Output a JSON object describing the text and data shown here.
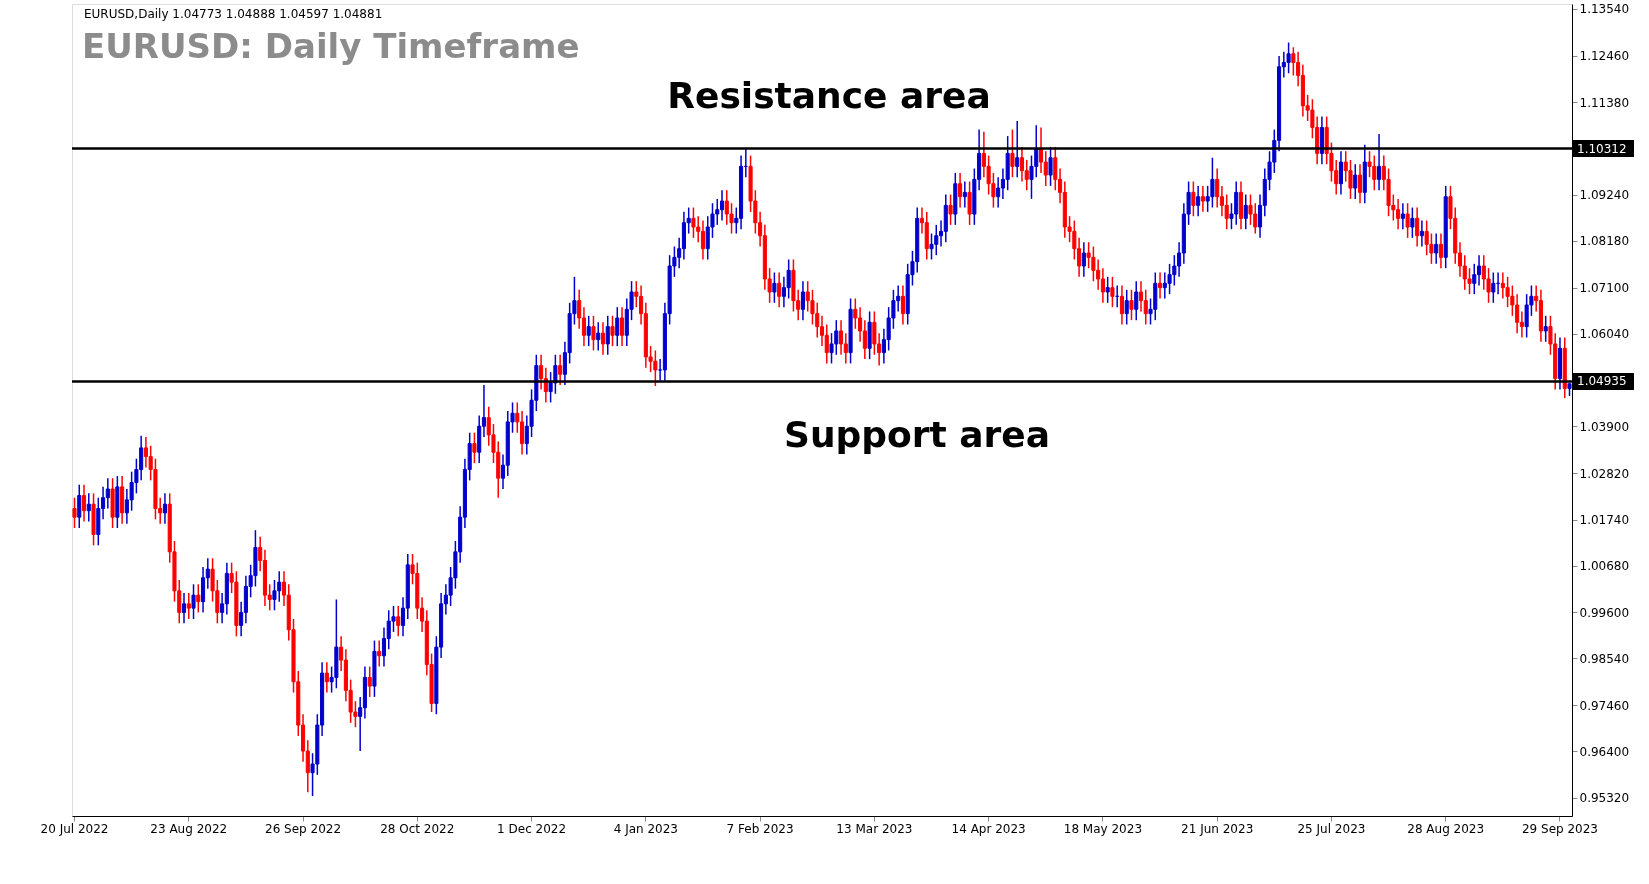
{
  "chart_data": {
    "type": "candlestick",
    "title": "EURUSD: Daily Timeframe",
    "annotations": [
      "EURUSD,Daily  1.04773 1.04888 1.04597 1.04881",
      "Resistance area",
      "Support area"
    ],
    "categories": [
      "20 Jul 2022",
      null,
      null,
      null,
      null,
      null,
      null,
      null,
      null,
      null,
      null,
      null,
      null,
      null,
      null,
      null,
      null,
      null,
      null,
      null,
      null,
      null,
      null,
      null,
      "23 Aug 2022",
      null,
      null,
      null,
      null,
      null,
      null,
      null,
      null,
      null,
      null,
      null,
      null,
      null,
      null,
      null,
      null,
      null,
      null,
      null,
      null,
      null,
      null,
      null,
      "26 Sep 2022",
      null,
      null,
      null,
      null,
      null,
      null,
      null,
      null,
      null,
      null,
      null,
      null,
      null,
      null,
      null,
      null,
      null,
      null,
      null,
      null,
      null,
      null,
      null,
      "28 Oct 2022",
      null,
      null,
      null,
      null,
      null,
      null,
      null,
      null,
      null,
      null,
      null,
      null,
      null,
      null,
      null,
      null,
      null,
      null,
      null,
      null,
      null,
      null,
      null,
      "1 Dec 2022",
      null,
      null,
      null,
      null,
      null,
      null,
      null,
      null,
      null,
      null,
      null,
      null,
      null,
      null,
      null,
      null,
      null,
      null,
      null,
      null,
      null,
      null,
      null,
      "4 Jan 2023",
      null,
      null,
      null,
      null,
      null,
      null,
      null,
      null,
      null,
      null,
      null,
      null,
      null,
      null,
      null,
      null,
      null,
      null,
      null,
      null,
      null,
      null,
      null,
      "7 Feb 2023",
      null,
      null,
      null,
      null,
      null,
      null,
      null,
      null,
      null,
      null,
      null,
      null,
      null,
      null,
      null,
      null,
      null,
      null,
      null,
      null,
      null,
      null,
      null,
      "13 Mar 2023",
      null,
      null,
      null,
      null,
      null,
      null,
      null,
      null,
      null,
      null,
      null,
      null,
      null,
      null,
      null,
      null,
      null,
      null,
      null,
      null,
      null,
      null,
      null,
      "14 Apr 2023",
      null,
      null,
      null,
      null,
      null,
      null,
      null,
      null,
      null,
      null,
      null,
      null,
      null,
      null,
      null,
      null,
      null,
      null,
      null,
      null,
      null,
      null,
      null,
      "18 May 2023",
      null,
      null,
      null,
      null,
      null,
      null,
      null,
      null,
      null,
      null,
      null,
      null,
      null,
      null,
      null,
      null,
      null,
      null,
      null,
      null,
      null,
      null,
      null,
      "21 Jun 2023",
      null,
      null,
      null,
      null,
      null,
      null,
      null,
      null,
      null,
      null,
      null,
      null,
      null,
      null,
      null,
      null,
      null,
      null,
      null,
      null,
      null,
      null,
      null,
      "25 Jul 2023",
      null,
      null,
      null,
      null,
      null,
      null,
      null,
      null,
      null,
      null,
      null,
      null,
      null,
      null,
      null,
      null,
      null,
      null,
      null,
      null,
      null,
      null,
      null,
      "28 Aug 2023",
      null,
      null,
      null,
      null,
      null,
      null,
      null,
      null,
      null,
      null,
      null,
      null,
      null,
      null,
      null,
      null,
      null,
      null,
      null,
      null,
      null,
      null,
      null,
      "29 Sep 2023",
      null,
      null
    ],
    "ylim": [
      0.949,
      1.1365
    ],
    "yticks": [
      {
        "value": 0.9532,
        "label": "0.95320"
      },
      {
        "value": 0.964,
        "label": "0.96400"
      },
      {
        "value": 0.9746,
        "label": "0.97460"
      },
      {
        "value": 0.9854,
        "label": "0.98540"
      },
      {
        "value": 0.996,
        "label": "0.99600"
      },
      {
        "value": 1.0068,
        "label": "1.00680"
      },
      {
        "value": 1.0174,
        "label": "1.01740"
      },
      {
        "value": 1.0282,
        "label": "1.02820"
      },
      {
        "value": 1.039,
        "label": "1.03900"
      },
      {
        "value": 1.0604,
        "label": "1.06040"
      },
      {
        "value": 1.071,
        "label": "1.07100"
      },
      {
        "value": 1.0818,
        "label": "1.08180"
      },
      {
        "value": 1.0924,
        "label": "1.09240"
      },
      {
        "value": 1.1138,
        "label": "1.11380"
      },
      {
        "value": 1.1246,
        "label": "1.12460"
      },
      {
        "value": 1.1354,
        "label": "1.13540"
      }
    ],
    "ref_lines": [
      {
        "axis": "y",
        "value": 1.10312,
        "label": "1.10312",
        "color": "#000000"
      },
      {
        "axis": "y",
        "value": 1.04935,
        "label": "1.04935",
        "color": "#000000"
      }
    ],
    "grid": false,
    "ohlc": [
      [
        1.02,
        1.0225,
        1.0155,
        1.018
      ],
      [
        1.018,
        1.0255,
        1.0155,
        1.023
      ],
      [
        1.023,
        1.0255,
        1.017,
        1.0195
      ],
      [
        1.0195,
        1.0235,
        1.017,
        1.021
      ],
      [
        1.021,
        1.0235,
        1.0115,
        1.014
      ],
      [
        1.014,
        1.0225,
        1.0115,
        1.02
      ],
      [
        1.02,
        1.025,
        1.0175,
        1.0225
      ],
      [
        1.0225,
        1.027,
        1.02,
        1.0245
      ],
      [
        1.0245,
        1.027,
        1.0155,
        1.018
      ],
      [
        1.018,
        1.0275,
        1.0155,
        1.025
      ],
      [
        1.025,
        1.0275,
        1.0165,
        1.019
      ],
      [
        1.019,
        1.0245,
        1.0165,
        1.022
      ],
      [
        1.022,
        1.0285,
        1.0195,
        1.026
      ],
      [
        1.026,
        1.0315,
        1.0235,
        1.029
      ],
      [
        1.029,
        1.0368,
        1.0265,
        1.034
      ],
      [
        1.034,
        1.0365,
        1.0295,
        1.032
      ],
      [
        1.032,
        1.0345,
        1.0265,
        1.029
      ],
      [
        1.029,
        1.0315,
        1.0175,
        1.02
      ],
      [
        1.02,
        1.0225,
        1.0165,
        1.019
      ],
      [
        1.019,
        1.0235,
        1.0165,
        1.021
      ],
      [
        1.021,
        1.0235,
        1.0075,
        1.01
      ],
      [
        1.01,
        1.0125,
        0.9985,
        1.001
      ],
      [
        1.001,
        1.0035,
        0.9935,
        0.996
      ],
      [
        0.996,
        1.0005,
        0.9935,
        0.998
      ],
      [
        0.998,
        1.0005,
        0.9945,
        0.997
      ],
      [
        0.997,
        1.0025,
        0.9945,
        1.0
      ],
      [
        1.0,
        1.0025,
        0.996,
        0.9985
      ],
      [
        0.9985,
        1.0065,
        0.996,
        1.004
      ],
      [
        1.004,
        1.0085,
        1.0015,
        1.006
      ],
      [
        1.006,
        1.0085,
        0.9985,
        1.001
      ],
      [
        1.001,
        1.0035,
        0.9935,
        0.996
      ],
      [
        0.996,
        1.0005,
        0.9935,
        0.998
      ],
      [
        0.998,
        1.0075,
        0.9955,
        1.005
      ],
      [
        1.005,
        1.0075,
        1.0005,
        1.003
      ],
      [
        1.003,
        1.0055,
        0.9905,
        0.993
      ],
      [
        0.993,
        0.9985,
        0.9905,
        0.996
      ],
      [
        0.996,
        1.0045,
        0.9935,
        1.002
      ],
      [
        1.002,
        1.007,
        0.9995,
        1.0045
      ],
      [
        1.0045,
        1.015,
        1.002,
        1.011
      ],
      [
        1.011,
        1.0135,
        1.0055,
        1.008
      ],
      [
        1.008,
        1.0105,
        0.9975,
        1.0
      ],
      [
        1.0,
        1.0025,
        0.9965,
        0.999
      ],
      [
        0.999,
        1.0035,
        0.9965,
        1.001
      ],
      [
        1.001,
        1.0055,
        0.9985,
        1.003
      ],
      [
        1.003,
        1.0055,
        0.9975,
        1.0
      ],
      [
        1.0,
        1.0025,
        0.9895,
        0.992
      ],
      [
        0.992,
        0.9945,
        0.9775,
        0.98
      ],
      [
        0.98,
        0.9825,
        0.9675,
        0.97
      ],
      [
        0.97,
        0.9725,
        0.9615,
        0.964
      ],
      [
        0.964,
        0.9665,
        0.9545,
        0.959
      ],
      [
        0.959,
        0.9635,
        0.9536,
        0.961
      ],
      [
        0.961,
        0.9725,
        0.9585,
        0.97
      ],
      [
        0.97,
        0.9845,
        0.9675,
        0.982
      ],
      [
        0.982,
        0.9845,
        0.9775,
        0.98
      ],
      [
        0.98,
        0.9835,
        0.9775,
        0.981
      ],
      [
        0.981,
        0.999,
        0.9785,
        0.988
      ],
      [
        0.988,
        0.9905,
        0.9825,
        0.985
      ],
      [
        0.985,
        0.9875,
        0.9755,
        0.978
      ],
      [
        0.978,
        0.9805,
        0.9705,
        0.973
      ],
      [
        0.973,
        0.9755,
        0.9695,
        0.972
      ],
      [
        0.972,
        0.9765,
        0.964,
        0.974
      ],
      [
        0.974,
        0.9835,
        0.9715,
        0.981
      ],
      [
        0.981,
        0.9835,
        0.9765,
        0.979
      ],
      [
        0.979,
        0.9895,
        0.9765,
        0.987
      ],
      [
        0.987,
        0.9895,
        0.9835,
        0.986
      ],
      [
        0.986,
        0.9925,
        0.9835,
        0.99
      ],
      [
        0.99,
        0.9965,
        0.9875,
        0.994
      ],
      [
        0.994,
        0.9975,
        0.9915,
        0.995
      ],
      [
        0.995,
        0.9975,
        0.9905,
        0.993
      ],
      [
        0.993,
        0.9995,
        0.9905,
        0.997
      ],
      [
        0.997,
        1.0095,
        0.9945,
        1.007
      ],
      [
        1.007,
        1.0095,
        1.0025,
        1.005
      ],
      [
        1.005,
        1.0075,
        0.9945,
        0.997
      ],
      [
        0.997,
        0.9995,
        0.9915,
        0.994
      ],
      [
        0.994,
        0.9965,
        0.9815,
        0.984
      ],
      [
        0.984,
        0.9865,
        0.973,
        0.975
      ],
      [
        0.975,
        0.9905,
        0.9725,
        0.988
      ],
      [
        0.988,
        1.0005,
        0.9855,
        0.998
      ],
      [
        0.998,
        1.0025,
        0.9955,
        1.0
      ],
      [
        1.0,
        1.0065,
        0.9975,
        1.004
      ],
      [
        1.004,
        1.0125,
        1.0015,
        1.01
      ],
      [
        1.01,
        1.0205,
        1.0075,
        1.018
      ],
      [
        1.018,
        1.0315,
        1.0155,
        1.029
      ],
      [
        1.029,
        1.0375,
        1.0265,
        1.035
      ],
      [
        1.035,
        1.0375,
        1.0305,
        1.033
      ],
      [
        1.033,
        1.0415,
        1.0305,
        1.039
      ],
      [
        1.039,
        1.0485,
        1.0365,
        1.041
      ],
      [
        1.041,
        1.0435,
        1.0345,
        1.037
      ],
      [
        1.037,
        1.0395,
        1.0305,
        1.033
      ],
      [
        1.033,
        1.0355,
        1.0225,
        1.027
      ],
      [
        1.027,
        1.0325,
        1.0245,
        1.03
      ],
      [
        1.03,
        1.0425,
        1.0275,
        1.04
      ],
      [
        1.04,
        1.0445,
        1.0375,
        1.042
      ],
      [
        1.042,
        1.0445,
        1.0375,
        1.04
      ],
      [
        1.04,
        1.0425,
        1.0325,
        1.035
      ],
      [
        1.035,
        1.0415,
        1.0325,
        1.039
      ],
      [
        1.039,
        1.0475,
        1.0365,
        1.045
      ],
      [
        1.045,
        1.0555,
        1.0425,
        1.053
      ],
      [
        1.053,
        1.0555,
        1.0475,
        1.05
      ],
      [
        1.05,
        1.0525,
        1.0445,
        1.047
      ],
      [
        1.047,
        1.0515,
        1.0445,
        1.049
      ],
      [
        1.049,
        1.0555,
        1.0465,
        1.053
      ],
      [
        1.053,
        1.0555,
        1.0485,
        1.051
      ],
      [
        1.051,
        1.0585,
        1.0485,
        1.056
      ],
      [
        1.056,
        1.0675,
        1.0535,
        1.065
      ],
      [
        1.065,
        1.0735,
        1.0625,
        1.068
      ],
      [
        1.068,
        1.0705,
        1.0615,
        1.064
      ],
      [
        1.064,
        1.0665,
        1.0575,
        1.06
      ],
      [
        1.06,
        1.0645,
        1.0575,
        1.062
      ],
      [
        1.062,
        1.0645,
        1.0565,
        1.059
      ],
      [
        1.059,
        1.063,
        1.0565,
        1.0605
      ],
      [
        1.0605,
        1.063,
        1.0555,
        1.058
      ],
      [
        1.058,
        1.0645,
        1.0555,
        1.062
      ],
      [
        1.062,
        1.0645,
        1.0575,
        1.06
      ],
      [
        1.06,
        1.0665,
        1.0575,
        1.064
      ],
      [
        1.064,
        1.0665,
        1.0575,
        1.06
      ],
      [
        1.06,
        1.0685,
        1.0575,
        1.066
      ],
      [
        1.066,
        1.0725,
        1.0635,
        1.07
      ],
      [
        1.07,
        1.0725,
        1.0665,
        1.069
      ],
      [
        1.069,
        1.0715,
        1.0625,
        1.065
      ],
      [
        1.065,
        1.0675,
        1.0525,
        1.055
      ],
      [
        1.055,
        1.0575,
        1.0515,
        1.054
      ],
      [
        1.054,
        1.0565,
        1.0483,
        1.052
      ],
      [
        1.052,
        1.0545,
        1.0495,
        1.052
      ],
      [
        1.052,
        1.0675,
        1.0495,
        1.065
      ],
      [
        1.065,
        1.0785,
        1.0625,
        1.076
      ],
      [
        1.076,
        1.0805,
        1.0735,
        1.078
      ],
      [
        1.078,
        1.0825,
        1.0755,
        1.08
      ],
      [
        1.08,
        1.0885,
        1.0775,
        1.086
      ],
      [
        1.086,
        1.0895,
        1.0835,
        1.087
      ],
      [
        1.087,
        1.0895,
        1.0825,
        1.085
      ],
      [
        1.085,
        1.0875,
        1.0815,
        1.084
      ],
      [
        1.084,
        1.0865,
        1.0775,
        1.08
      ],
      [
        1.08,
        1.0875,
        1.0775,
        1.085
      ],
      [
        1.085,
        1.0905,
        1.0825,
        1.088
      ],
      [
        1.088,
        1.0915,
        1.0855,
        1.089
      ],
      [
        1.089,
        1.0935,
        1.0865,
        1.091
      ],
      [
        1.091,
        1.0935,
        1.0855,
        1.088
      ],
      [
        1.088,
        1.0905,
        1.0835,
        1.086
      ],
      [
        1.086,
        1.0895,
        1.0835,
        1.087
      ],
      [
        1.087,
        1.1015,
        1.0845,
        1.099
      ],
      [
        1.099,
        1.1032,
        1.0965,
        1.099
      ],
      [
        1.099,
        1.1015,
        1.0885,
        1.091
      ],
      [
        1.091,
        1.0935,
        1.0835,
        1.086
      ],
      [
        1.086,
        1.0885,
        1.0805,
        1.083
      ],
      [
        1.083,
        1.0855,
        1.0705,
        1.073
      ],
      [
        1.073,
        1.0755,
        1.0675,
        1.07
      ],
      [
        1.07,
        1.0745,
        1.0675,
        1.072
      ],
      [
        1.072,
        1.0745,
        1.0665,
        1.069
      ],
      [
        1.069,
        1.0735,
        1.0665,
        1.071
      ],
      [
        1.071,
        1.0775,
        1.0685,
        1.075
      ],
      [
        1.075,
        1.0775,
        1.0655,
        1.068
      ],
      [
        1.068,
        1.0705,
        1.0635,
        1.066
      ],
      [
        1.066,
        1.0725,
        1.0635,
        1.07
      ],
      [
        1.07,
        1.0725,
        1.0655,
        1.068
      ],
      [
        1.068,
        1.0705,
        1.0625,
        1.065
      ],
      [
        1.065,
        1.0675,
        1.0595,
        1.062
      ],
      [
        1.062,
        1.0645,
        1.0575,
        1.06
      ],
      [
        1.06,
        1.0625,
        1.0535,
        1.056
      ],
      [
        1.056,
        1.0605,
        1.0535,
        1.058
      ],
      [
        1.058,
        1.0635,
        1.0555,
        1.061
      ],
      [
        1.061,
        1.0635,
        1.0555,
        1.058
      ],
      [
        1.058,
        1.0605,
        1.0535,
        1.056
      ],
      [
        1.056,
        1.0685,
        1.0535,
        1.066
      ],
      [
        1.066,
        1.0685,
        1.0615,
        1.064
      ],
      [
        1.064,
        1.0665,
        1.0585,
        1.061
      ],
      [
        1.061,
        1.0635,
        1.0545,
        1.057
      ],
      [
        1.057,
        1.0655,
        1.0545,
        1.063
      ],
      [
        1.063,
        1.0655,
        1.0555,
        1.058
      ],
      [
        1.058,
        1.0605,
        1.053,
        1.056
      ],
      [
        1.056,
        1.0615,
        1.0535,
        1.059
      ],
      [
        1.059,
        1.0665,
        1.0565,
        1.064
      ],
      [
        1.064,
        1.0705,
        1.0615,
        1.068
      ],
      [
        1.068,
        1.0715,
        1.0655,
        1.069
      ],
      [
        1.069,
        1.0715,
        1.0625,
        1.065
      ],
      [
        1.065,
        1.0765,
        1.0625,
        1.074
      ],
      [
        1.074,
        1.0795,
        1.0715,
        1.077
      ],
      [
        1.077,
        1.0895,
        1.0745,
        1.087
      ],
      [
        1.087,
        1.0895,
        1.0835,
        1.086
      ],
      [
        1.086,
        1.0885,
        1.0775,
        1.08
      ],
      [
        1.08,
        1.0835,
        1.0775,
        1.081
      ],
      [
        1.081,
        1.0855,
        1.0785,
        1.083
      ],
      [
        1.083,
        1.0865,
        1.0805,
        1.084
      ],
      [
        1.084,
        1.0925,
        1.0815,
        1.09
      ],
      [
        1.09,
        1.0925,
        1.0855,
        1.088
      ],
      [
        1.088,
        1.0975,
        1.0855,
        1.095
      ],
      [
        1.095,
        1.0975,
        1.0895,
        1.092
      ],
      [
        1.092,
        1.0955,
        1.0895,
        1.093
      ],
      [
        1.093,
        1.0955,
        1.0855,
        1.088
      ],
      [
        1.088,
        1.0985,
        1.0855,
        1.096
      ],
      [
        1.096,
        1.1075,
        1.0935,
        1.102
      ],
      [
        1.102,
        1.107,
        1.0965,
        1.099
      ],
      [
        1.099,
        1.1015,
        1.0925,
        1.095
      ],
      [
        1.095,
        1.0975,
        1.0895,
        1.092
      ],
      [
        1.092,
        1.0965,
        1.0895,
        1.094
      ],
      [
        1.094,
        1.0985,
        1.0915,
        1.096
      ],
      [
        1.096,
        1.106,
        1.0935,
        1.102
      ],
      [
        1.102,
        1.1075,
        1.0965,
        1.099
      ],
      [
        1.099,
        1.1095,
        1.0965,
        1.101
      ],
      [
        1.101,
        1.1035,
        1.0955,
        1.098
      ],
      [
        1.098,
        1.1005,
        1.0935,
        1.096
      ],
      [
        1.096,
        1.1015,
        1.0915,
        1.099
      ],
      [
        1.099,
        1.1085,
        1.0965,
        1.103
      ],
      [
        1.103,
        1.108,
        1.0975,
        1.1
      ],
      [
        1.1,
        1.1025,
        1.0945,
        1.097
      ],
      [
        1.097,
        1.1035,
        1.0945,
        1.101
      ],
      [
        1.101,
        1.1035,
        1.0935,
        1.096
      ],
      [
        1.096,
        1.0985,
        1.0905,
        1.093
      ],
      [
        1.093,
        1.0955,
        1.0825,
        1.085
      ],
      [
        1.085,
        1.0875,
        1.0815,
        1.084
      ],
      [
        1.084,
        1.0865,
        1.0775,
        1.08
      ],
      [
        1.08,
        1.0825,
        1.0735,
        1.076
      ],
      [
        1.076,
        1.0815,
        1.0735,
        1.079
      ],
      [
        1.079,
        1.0815,
        1.0755,
        1.078
      ],
      [
        1.078,
        1.0805,
        1.0725,
        1.075
      ],
      [
        1.075,
        1.0775,
        1.0705,
        1.073
      ],
      [
        1.073,
        1.0755,
        1.0675,
        1.07
      ],
      [
        1.07,
        1.0735,
        1.0675,
        1.071
      ],
      [
        1.071,
        1.0735,
        1.0665,
        1.069
      ],
      [
        1.069,
        1.0715,
        1.0665,
        1.069
      ],
      [
        1.069,
        1.0715,
        1.0625,
        1.065
      ],
      [
        1.065,
        1.0705,
        1.0625,
        1.068
      ],
      [
        1.068,
        1.0705,
        1.0635,
        1.066
      ],
      [
        1.066,
        1.0725,
        1.0635,
        1.07
      ],
      [
        1.07,
        1.0725,
        1.0655,
        1.068
      ],
      [
        1.068,
        1.0705,
        1.0625,
        1.065
      ],
      [
        1.065,
        1.0685,
        1.0625,
        1.066
      ],
      [
        1.066,
        1.0745,
        1.0635,
        1.072
      ],
      [
        1.072,
        1.0745,
        1.0685,
        1.071
      ],
      [
        1.071,
        1.0745,
        1.0685,
        1.072
      ],
      [
        1.072,
        1.0765,
        1.0695,
        1.074
      ],
      [
        1.074,
        1.0785,
        1.0715,
        1.076
      ],
      [
        1.076,
        1.0815,
        1.0735,
        1.079
      ],
      [
        1.079,
        1.0905,
        1.0765,
        1.088
      ],
      [
        1.088,
        1.0955,
        1.0855,
        1.093
      ],
      [
        1.093,
        1.0955,
        1.0875,
        1.09
      ],
      [
        1.09,
        1.0945,
        1.0875,
        1.092
      ],
      [
        1.092,
        1.0945,
        1.0885,
        1.091
      ],
      [
        1.091,
        1.0945,
        1.0885,
        1.092
      ],
      [
        1.092,
        1.101,
        1.0895,
        1.096
      ],
      [
        1.096,
        1.0985,
        1.0895,
        1.092
      ],
      [
        1.092,
        1.0945,
        1.0875,
        1.09
      ],
      [
        1.09,
        1.0925,
        1.0845,
        1.087
      ],
      [
        1.087,
        1.0905,
        1.0845,
        1.088
      ],
      [
        1.088,
        1.0955,
        1.0855,
        1.093
      ],
      [
        1.093,
        1.0955,
        1.0845,
        1.087
      ],
      [
        1.087,
        1.0925,
        1.0845,
        1.09
      ],
      [
        1.09,
        1.0925,
        1.0855,
        1.088
      ],
      [
        1.088,
        1.0905,
        1.0835,
        1.085
      ],
      [
        1.085,
        1.0925,
        1.0825,
        1.09
      ],
      [
        1.09,
        1.0985,
        1.0875,
        1.096
      ],
      [
        1.096,
        1.1025,
        1.0935,
        1.1
      ],
      [
        1.1,
        1.1075,
        1.0975,
        1.105
      ],
      [
        1.105,
        1.1245,
        1.1025,
        1.122
      ],
      [
        1.122,
        1.1255,
        1.1195,
        1.123
      ],
      [
        1.123,
        1.1276,
        1.1205,
        1.125
      ],
      [
        1.125,
        1.1265,
        1.12,
        1.123
      ],
      [
        1.123,
        1.1255,
        1.1175,
        1.12
      ],
      [
        1.12,
        1.1225,
        1.1105,
        1.113
      ],
      [
        1.113,
        1.1155,
        1.1095,
        1.112
      ],
      [
        1.112,
        1.1145,
        1.1055,
        1.108
      ],
      [
        1.108,
        1.1105,
        1.0995,
        1.102
      ],
      [
        1.102,
        1.1105,
        1.0995,
        1.108
      ],
      [
        1.108,
        1.1105,
        1.0995,
        1.102
      ],
      [
        1.102,
        1.1045,
        1.0955,
        1.098
      ],
      [
        1.098,
        1.1005,
        1.0925,
        1.095
      ],
      [
        1.095,
        1.1025,
        1.0925,
        1.1
      ],
      [
        1.1,
        1.1025,
        1.0955,
        1.098
      ],
      [
        1.098,
        1.1005,
        1.0915,
        1.094
      ],
      [
        1.094,
        1.0995,
        1.0915,
        1.097
      ],
      [
        1.097,
        1.0995,
        1.0905,
        1.093
      ],
      [
        1.093,
        1.104,
        1.0905,
        1.1
      ],
      [
        1.1,
        1.1025,
        1.0965,
        1.099
      ],
      [
        1.099,
        1.1015,
        1.0935,
        1.096
      ],
      [
        1.096,
        1.1065,
        1.0935,
        1.099
      ],
      [
        1.099,
        1.1015,
        1.0935,
        1.096
      ],
      [
        1.096,
        1.0985,
        1.0875,
        1.09
      ],
      [
        1.09,
        1.0925,
        1.0865,
        1.089
      ],
      [
        1.089,
        1.0915,
        1.0845,
        1.087
      ],
      [
        1.087,
        1.0905,
        1.0845,
        1.088
      ],
      [
        1.088,
        1.0905,
        1.0825,
        1.085
      ],
      [
        1.085,
        1.0895,
        1.0825,
        1.087
      ],
      [
        1.087,
        1.0895,
        1.0805,
        1.083
      ],
      [
        1.083,
        1.0865,
        1.0805,
        1.084
      ],
      [
        1.084,
        1.0865,
        1.0785,
        1.081
      ],
      [
        1.081,
        1.0835,
        1.0765,
        1.079
      ],
      [
        1.079,
        1.0835,
        1.0765,
        1.081
      ],
      [
        1.081,
        1.0835,
        1.0755,
        1.078
      ],
      [
        1.078,
        1.0945,
        1.0755,
        1.092
      ],
      [
        1.092,
        1.0945,
        1.0845,
        1.087
      ],
      [
        1.087,
        1.0895,
        1.0765,
        1.079
      ],
      [
        1.079,
        1.0815,
        1.0735,
        1.076
      ],
      [
        1.076,
        1.0785,
        1.0705,
        1.073
      ],
      [
        1.073,
        1.0755,
        1.0695,
        1.072
      ],
      [
        1.072,
        1.0765,
        1.0695,
        1.074
      ],
      [
        1.074,
        1.0785,
        1.0715,
        1.076
      ],
      [
        1.076,
        1.0785,
        1.0705,
        1.073
      ],
      [
        1.073,
        1.0755,
        1.0675,
        1.07
      ],
      [
        1.07,
        1.0745,
        1.0675,
        1.072
      ],
      [
        1.072,
        1.0745,
        1.0695,
        1.072
      ],
      [
        1.072,
        1.0745,
        1.0685,
        1.071
      ],
      [
        1.071,
        1.0735,
        1.0665,
        1.069
      ],
      [
        1.069,
        1.0715,
        1.0645,
        1.067
      ],
      [
        1.067,
        1.0695,
        1.0605,
        1.063
      ],
      [
        1.063,
        1.0655,
        1.0595,
        1.062
      ],
      [
        1.062,
        1.0695,
        1.0595,
        1.067
      ],
      [
        1.067,
        1.0715,
        1.0645,
        1.069
      ],
      [
        1.069,
        1.0715,
        1.0655,
        1.068
      ],
      [
        1.068,
        1.0705,
        1.0585,
        1.061
      ],
      [
        1.061,
        1.0645,
        1.0585,
        1.062
      ],
      [
        1.062,
        1.0645,
        1.0555,
        1.058
      ],
      [
        1.058,
        1.0605,
        1.0475,
        1.05
      ],
      [
        1.05,
        1.0595,
        1.0475,
        1.057
      ],
      [
        1.057,
        1.0595,
        1.0455,
        1.0477
      ],
      [
        1.0477,
        1.0489,
        1.046,
        1.0488
      ]
    ]
  }
}
